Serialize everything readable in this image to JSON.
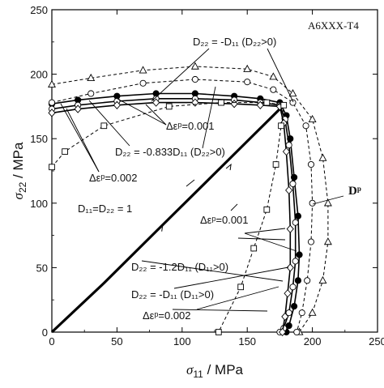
{
  "chart_data": {
    "type": "scatter",
    "title": "A6XXX-T4",
    "xlabel": {
      "symbol": "σ",
      "sub": "11",
      "unit": " / MPa"
    },
    "ylabel": {
      "symbol": "σ",
      "sub": "22",
      "unit": " / MPa"
    },
    "xlim": [
      0,
      250
    ],
    "ylim": [
      0,
      250
    ],
    "x_ticks": [
      "0",
      "50",
      "100",
      "150",
      "200",
      "250"
    ],
    "y_ticks": [
      "0",
      "50",
      "100",
      "150",
      "200",
      "250"
    ],
    "grid": false,
    "series": [
      {
        "marker": "none",
        "style": "thick",
        "x": [
          0,
          40,
          80,
          120,
          150,
          170,
          178
        ],
        "y": [
          0,
          38,
          78,
          118,
          148,
          168,
          176
        ]
      },
      {
        "marker": "circle-filled",
        "style": "solid",
        "x": [
          0,
          20,
          50,
          80,
          110,
          140,
          160,
          175,
          180,
          183,
          186,
          189,
          190,
          189,
          186,
          182,
          180
        ],
        "y": [
          177,
          180,
          183,
          185,
          185,
          183,
          181,
          178,
          168,
          150,
          120,
          90,
          60,
          40,
          20,
          5,
          0
        ]
      },
      {
        "marker": "circle-open",
        "style": "solid",
        "x": [
          0,
          20,
          50,
          80,
          110,
          140,
          160,
          175,
          179,
          182,
          185,
          187,
          187,
          185,
          182,
          178,
          175
        ],
        "y": [
          173,
          176,
          179,
          181,
          181,
          180,
          178,
          176,
          165,
          145,
          115,
          85,
          55,
          35,
          15,
          3,
          0
        ]
      },
      {
        "marker": "diamond-open",
        "style": "solid",
        "x": [
          0,
          20,
          50,
          80,
          110,
          140,
          160,
          175,
          178,
          180,
          182,
          183,
          183,
          181,
          179,
          177
        ],
        "y": [
          170,
          173,
          176,
          178,
          178,
          177,
          176,
          175,
          162,
          140,
          110,
          80,
          50,
          30,
          12,
          0
        ]
      },
      {
        "marker": "triangle-open",
        "style": "dashed",
        "x": [
          0,
          30,
          70,
          110,
          150,
          170,
          185,
          200,
          208,
          212,
          212,
          208,
          200,
          190
        ],
        "y": [
          192,
          197,
          203,
          206,
          204,
          198,
          185,
          165,
          135,
          100,
          70,
          40,
          15,
          0
        ]
      },
      {
        "marker": "circle-open",
        "style": "dashed",
        "x": [
          0,
          30,
          70,
          110,
          150,
          170,
          185,
          195,
          199,
          200,
          199,
          196,
          192,
          188
        ],
        "y": [
          178,
          185,
          193,
          196,
          194,
          188,
          178,
          160,
          130,
          100,
          70,
          40,
          15,
          0
        ]
      },
      {
        "marker": "square-open",
        "style": "dashed",
        "x": [
          0,
          10,
          40,
          90,
          130,
          165,
          178,
          176,
          172,
          165,
          155,
          145,
          128
        ],
        "y": [
          128,
          140,
          160,
          175,
          178,
          178,
          176,
          160,
          130,
          95,
          65,
          35,
          0
        ]
      }
    ],
    "annotations": [
      {
        "text": "D₂₂ = -D₁₁ (D₂₂>0)"
      },
      {
        "text": "Δεᵖ=0.001"
      },
      {
        "text": "D₂₂ = -0.833D₁₁ (D₂₂>0)"
      },
      {
        "text": "Δεᵖ=0.002"
      },
      {
        "text": "D₁₁=D₂₂ = 1"
      },
      {
        "text": "Dᵖ"
      },
      {
        "text": "Δεᵖ=0.001"
      },
      {
        "text": "D₂₂ = -1.2D₁₁ (D₁₁>0)"
      },
      {
        "text": "D₂₂ = -D₁₁ (D₁₁>0)"
      },
      {
        "text": "Δεᵖ=0.002"
      }
    ]
  }
}
